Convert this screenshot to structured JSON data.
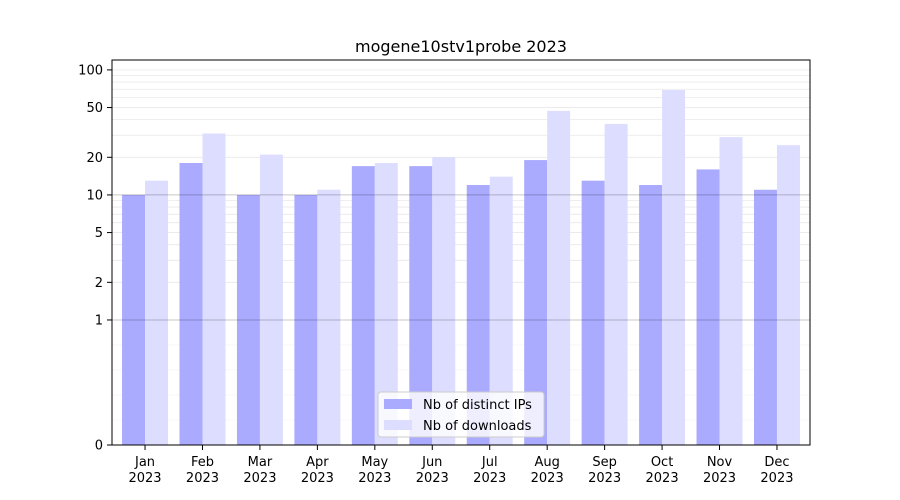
{
  "chart_data": {
    "type": "bar",
    "title": "mogene10stv1probe 2023",
    "xlabel": "",
    "ylabel": "",
    "categories": [
      {
        "month": "Jan",
        "year": "2023"
      },
      {
        "month": "Feb",
        "year": "2023"
      },
      {
        "month": "Mar",
        "year": "2023"
      },
      {
        "month": "Apr",
        "year": "2023"
      },
      {
        "month": "May",
        "year": "2023"
      },
      {
        "month": "Jun",
        "year": "2023"
      },
      {
        "month": "Jul",
        "year": "2023"
      },
      {
        "month": "Aug",
        "year": "2023"
      },
      {
        "month": "Sep",
        "year": "2023"
      },
      {
        "month": "Oct",
        "year": "2023"
      },
      {
        "month": "Nov",
        "year": "2023"
      },
      {
        "month": "Dec",
        "year": "2023"
      }
    ],
    "series": [
      {
        "name": "Nb of distinct IPs",
        "color": "#aaaaff",
        "values": [
          10,
          18,
          10,
          10,
          17,
          17,
          12,
          19,
          13,
          12,
          16,
          11
        ]
      },
      {
        "name": "Nb of downloads",
        "color": "#ddddff",
        "values": [
          13,
          31,
          21,
          11,
          18,
          20,
          14,
          47,
          37,
          69,
          29,
          25
        ]
      }
    ],
    "y_scale": "symlog",
    "ylim": [
      0,
      120
    ],
    "y_ticks": [
      0,
      1,
      2,
      5,
      10,
      20,
      50,
      100
    ],
    "reference_lines": [
      1,
      10
    ],
    "grid": "y-minor",
    "legend_position": "bottom-center"
  }
}
